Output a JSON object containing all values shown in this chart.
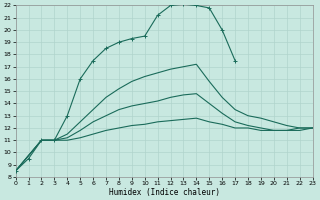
{
  "xlabel": "Humidex (Indice chaleur)",
  "bg_color": "#c8e8e0",
  "line_color": "#1a6b5a",
  "grid_color": "#b0d4cc",
  "ylim": [
    8,
    22
  ],
  "xlim": [
    0,
    23
  ],
  "yticks": [
    8,
    9,
    10,
    11,
    12,
    13,
    14,
    15,
    16,
    17,
    18,
    19,
    20,
    21,
    22
  ],
  "xticks": [
    0,
    1,
    2,
    3,
    4,
    5,
    6,
    7,
    8,
    9,
    10,
    11,
    12,
    13,
    14,
    15,
    16,
    17,
    18,
    19,
    20,
    21,
    22,
    23
  ],
  "line1_x": [
    0,
    1,
    2,
    3,
    4,
    5,
    6,
    7,
    8,
    9,
    10,
    11,
    12,
    13,
    14,
    15,
    16,
    17
  ],
  "line1_y": [
    8.5,
    9.5,
    11.0,
    11.0,
    13.0,
    16.0,
    17.5,
    18.5,
    19.0,
    19.3,
    19.5,
    21.2,
    22.0,
    22.1,
    22.0,
    21.8,
    20.0,
    17.5
  ],
  "line2_x": [
    0,
    2,
    3,
    4,
    5,
    6,
    7,
    8,
    9,
    10,
    11,
    12,
    13,
    14,
    15,
    16,
    17,
    18,
    19,
    20,
    21,
    22,
    23
  ],
  "line2_y": [
    8.5,
    11.0,
    11.0,
    11.5,
    12.5,
    13.5,
    14.5,
    15.2,
    15.8,
    16.2,
    16.5,
    16.8,
    17.0,
    17.2,
    15.8,
    14.5,
    13.5,
    13.0,
    12.8,
    12.5,
    12.2,
    12.0,
    12.0
  ],
  "line3_x": [
    0,
    2,
    3,
    4,
    5,
    6,
    7,
    8,
    9,
    10,
    11,
    12,
    13,
    14,
    15,
    16,
    17,
    18,
    19,
    20,
    21,
    22,
    23
  ],
  "line3_y": [
    8.5,
    11.0,
    11.0,
    11.2,
    11.8,
    12.5,
    13.0,
    13.5,
    13.8,
    14.0,
    14.2,
    14.5,
    14.7,
    14.8,
    14.0,
    13.2,
    12.5,
    12.2,
    12.0,
    11.8,
    11.8,
    11.8,
    12.0
  ],
  "line4_x": [
    0,
    2,
    3,
    4,
    5,
    6,
    7,
    8,
    9,
    10,
    11,
    12,
    13,
    14,
    15,
    16,
    17,
    18,
    19,
    20,
    21,
    22,
    23
  ],
  "line4_y": [
    8.5,
    11.0,
    11.0,
    11.0,
    11.2,
    11.5,
    11.8,
    12.0,
    12.2,
    12.3,
    12.5,
    12.6,
    12.7,
    12.8,
    12.5,
    12.3,
    12.0,
    12.0,
    11.8,
    11.8,
    11.8,
    12.0,
    12.0
  ]
}
